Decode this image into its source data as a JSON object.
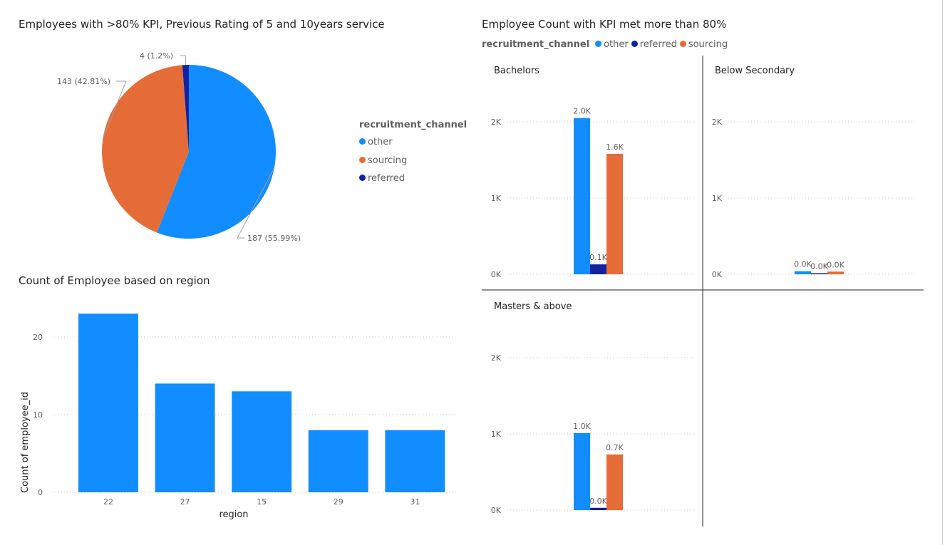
{
  "page": {
    "pie_title": "Employees with >80% KPI, Previous Rating of 5 and 10years service",
    "region_title": "Count of Employee based on region",
    "grid_title": "Employee Count with KPI met more than 80%"
  },
  "colors": {
    "other": "#118DFF",
    "sourcing": "#E66C37",
    "referred": "#12239E"
  },
  "pie_legend": {
    "title": "recruitment_channel",
    "items": [
      {
        "label": "other",
        "color": "#118DFF"
      },
      {
        "label": "sourcing",
        "color": "#E66C37"
      },
      {
        "label": "referred",
        "color": "#12239E"
      }
    ]
  },
  "grid_legend": {
    "title": "recruitment_channel",
    "items": [
      {
        "label": "other",
        "color": "#118DFF"
      },
      {
        "label": "referred",
        "color": "#12239E"
      },
      {
        "label": "sourcing",
        "color": "#E66C37"
      }
    ]
  },
  "chart_data": [
    {
      "id": "pie",
      "type": "pie",
      "title": "Employees with >80% KPI, Previous Rating of 5 and 10years service",
      "legend_title": "recruitment_channel",
      "slices": [
        {
          "name": "other",
          "value": 187,
          "label": "187 (55.99%)",
          "color": "#118DFF"
        },
        {
          "name": "sourcing",
          "value": 143,
          "label": "143 (42.81%)",
          "color": "#E66C37"
        },
        {
          "name": "referred",
          "value": 4,
          "label": "4 (1.2%)",
          "color": "#12239E"
        }
      ]
    },
    {
      "id": "region",
      "type": "bar",
      "title": "Count of Employee based on region",
      "xlabel": "region",
      "ylabel": "Count of employee_id",
      "categories": [
        "22",
        "27",
        "15",
        "29",
        "31"
      ],
      "values": [
        23,
        14,
        13,
        8,
        8
      ],
      "ylim": [
        0,
        25
      ],
      "yticks": [
        0,
        10,
        20
      ],
      "color": "#118DFF",
      "grid": true
    },
    {
      "id": "grid",
      "type": "bar",
      "title": "Employee Count with KPI met more than 80%",
      "legend_title": "recruitment_channel",
      "series_names": [
        "other",
        "referred",
        "sourcing"
      ],
      "ylim": [
        0,
        2500
      ],
      "yticks": [
        0,
        1000,
        2000
      ],
      "ytick_labels": [
        "0K",
        "1K",
        "2K"
      ],
      "panels": [
        {
          "name": "Bachelors",
          "values": [
            2050,
            130,
            1580
          ],
          "labels": [
            "2.0K",
            "0.1K",
            "1.6K"
          ]
        },
        {
          "name": "Below Secondary",
          "values": [
            40,
            5,
            35
          ],
          "labels": [
            "0.0K",
            "0.0K",
            "0.0K"
          ]
        },
        {
          "name": "Masters & above",
          "values": [
            1010,
            30,
            730
          ],
          "labels": [
            "1.0K",
            "0.0K",
            "0.7K"
          ]
        }
      ]
    }
  ]
}
